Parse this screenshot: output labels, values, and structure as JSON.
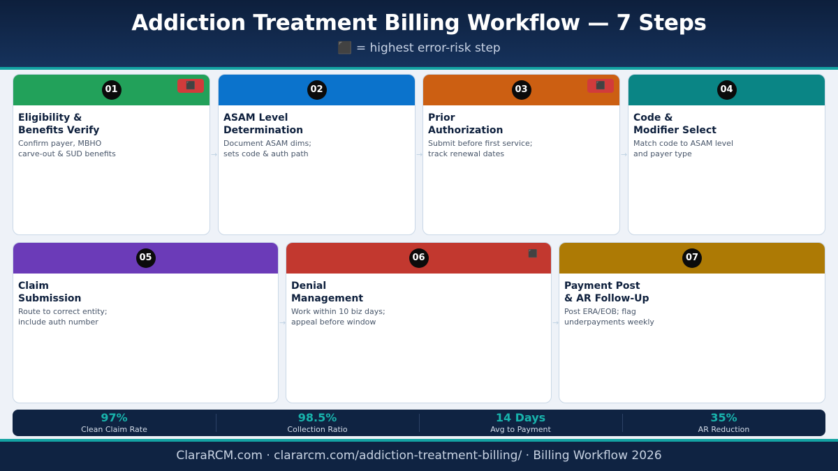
{
  "header": {
    "title": "Addiction Treatment Billing Workflow — 7 Steps",
    "subtitle": "⬛ = highest error-risk step"
  },
  "steps": [
    {
      "number": "01",
      "title": "Eligibility &\nBenefits Verify",
      "desc": "Confirm payer, MBHO\ncarve-out & SUD benefits",
      "color": "#22a15a",
      "high_risk": true,
      "risk_icon": "⬛"
    },
    {
      "number": "02",
      "title": "ASAM Level\nDetermination",
      "desc": "Document ASAM dims;\nsets code & auth path",
      "color": "#0b73cc",
      "high_risk": false
    },
    {
      "number": "03",
      "title": "Prior\nAuthorization",
      "desc": "Submit before first service;\ntrack renewal dates",
      "color": "#cc5f12",
      "high_risk": true,
      "risk_icon": "⬛"
    },
    {
      "number": "04",
      "title": "Code &\nModifier Select",
      "desc": "Match code to ASAM level\nand payer type",
      "color": "#0a8585",
      "high_risk": false
    },
    {
      "number": "05",
      "title": "Claim\nSubmission",
      "desc": "Route to correct entity;\ninclude auth number",
      "color": "#6b3bb8",
      "high_risk": false
    },
    {
      "number": "06",
      "title": "Denial\nManagement",
      "desc": "Work within 10 biz days;\nappeal before window",
      "color": "#c2382f",
      "high_risk": true,
      "risk_icon": "⬛"
    },
    {
      "number": "07",
      "title": "Payment Post\n& AR Follow-Up",
      "desc": "Post ERA/EOB; flag\nunderpayments weekly",
      "color": "#ad7a05",
      "high_risk": false
    }
  ],
  "arrow_icon": "→",
  "stats": [
    {
      "value": "97%",
      "label": "Clean Claim Rate"
    },
    {
      "value": "98.5%",
      "label": "Collection Ratio"
    },
    {
      "value": "14 Days",
      "label": "Avg to Payment"
    },
    {
      "value": "35%",
      "label": "AR Reduction"
    }
  ],
  "footer": {
    "text": "ClaraRCM.com · clararcm.com/addiction-treatment-billing/ · Billing Workflow 2026"
  }
}
